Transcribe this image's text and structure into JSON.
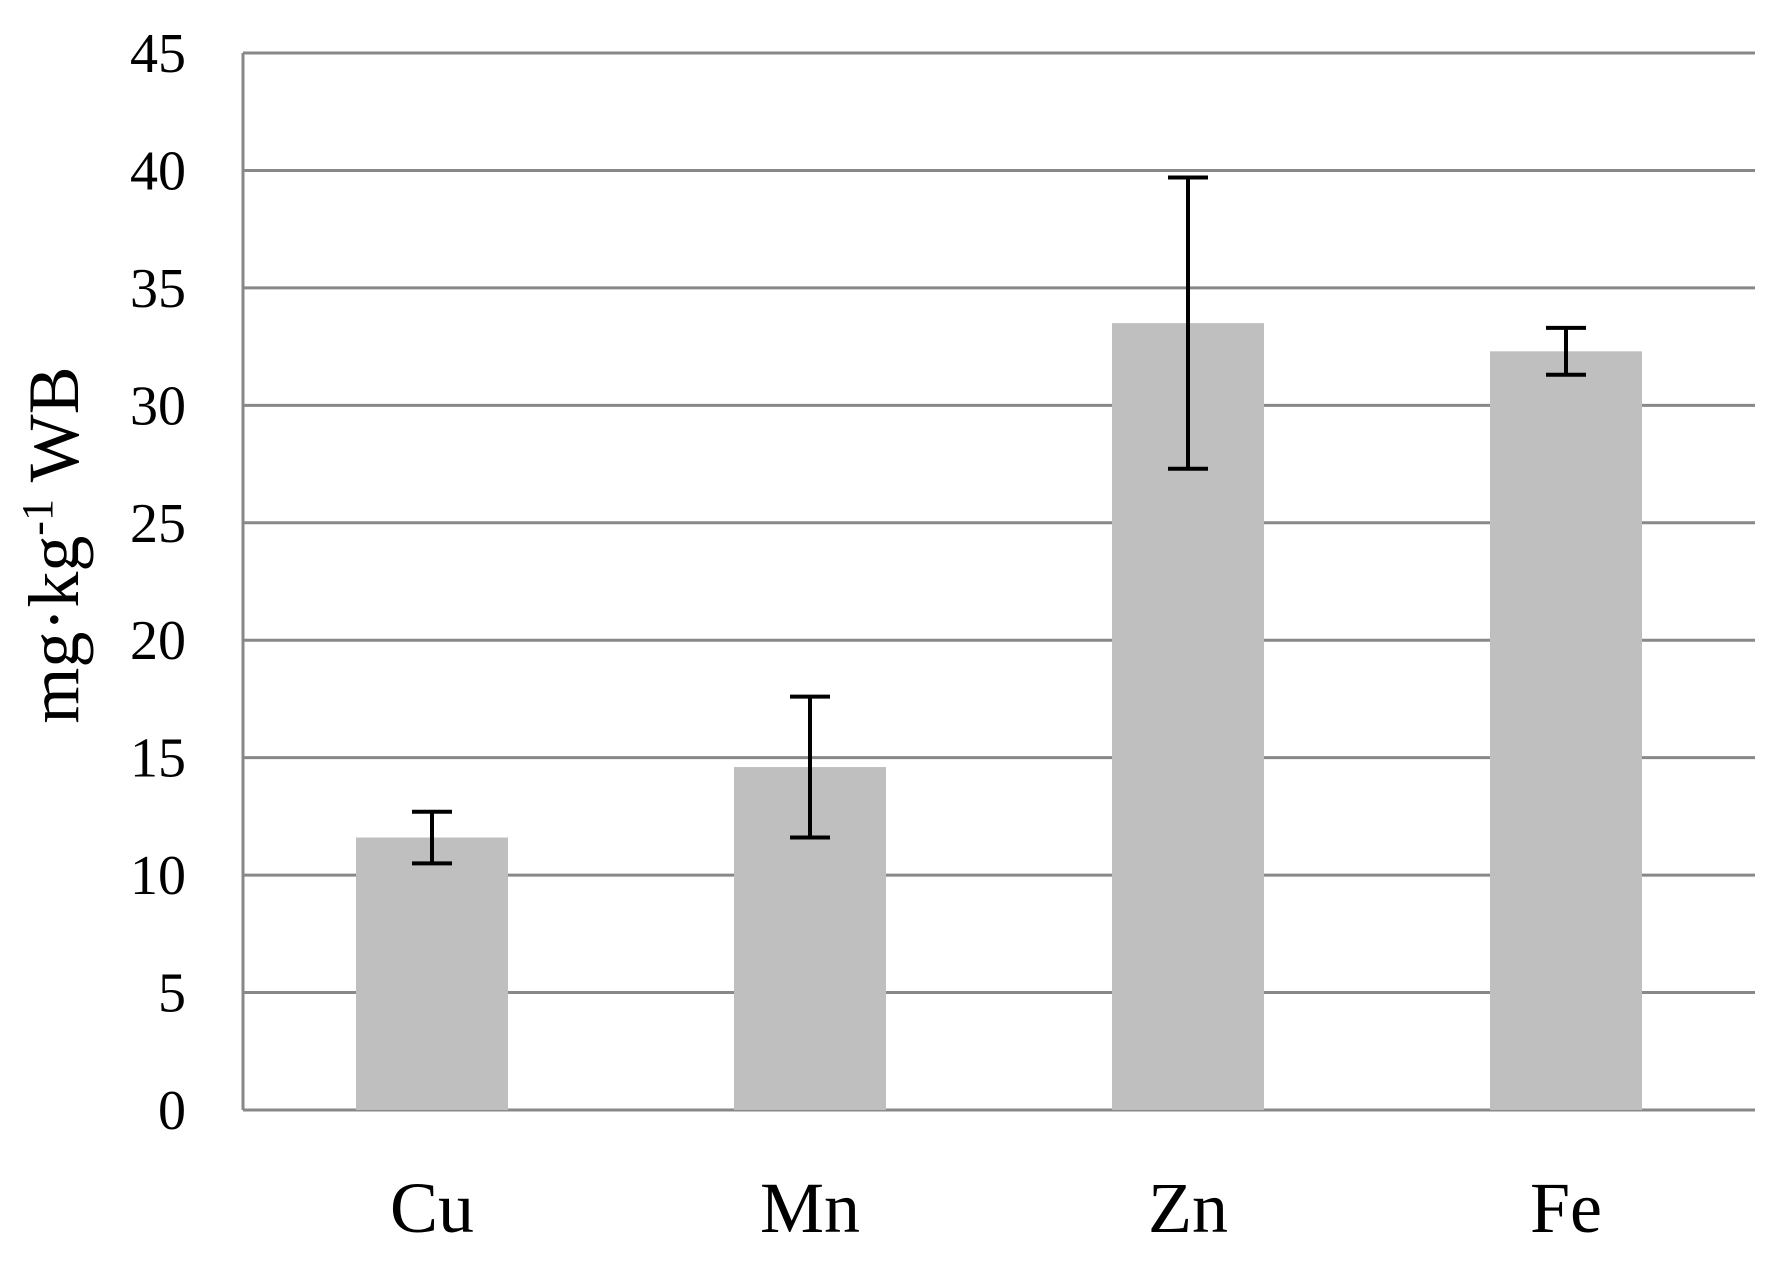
{
  "chart_data": {
    "type": "bar",
    "title": "",
    "xlabel": "",
    "ylabel": {
      "main": "mg·kg",
      "superscript": "-1",
      "suffix": " WB"
    },
    "categories": [
      "Cu",
      "Mn",
      "Zn",
      "Fe"
    ],
    "values": [
      11.6,
      14.6,
      33.5,
      32.3
    ],
    "error_bars": [
      [
        10.5,
        12.7
      ],
      [
        11.6,
        17.6
      ],
      [
        27.3,
        39.7
      ],
      [
        31.3,
        33.3
      ]
    ],
    "ylim": [
      0,
      45
    ],
    "yticks": [
      0,
      5,
      10,
      15,
      20,
      25,
      30,
      35,
      40,
      45
    ],
    "grid": true,
    "legend": "none",
    "colors": {
      "bar": "#bfbfbf",
      "grid": "#888888",
      "error_bar": "#000000"
    }
  }
}
